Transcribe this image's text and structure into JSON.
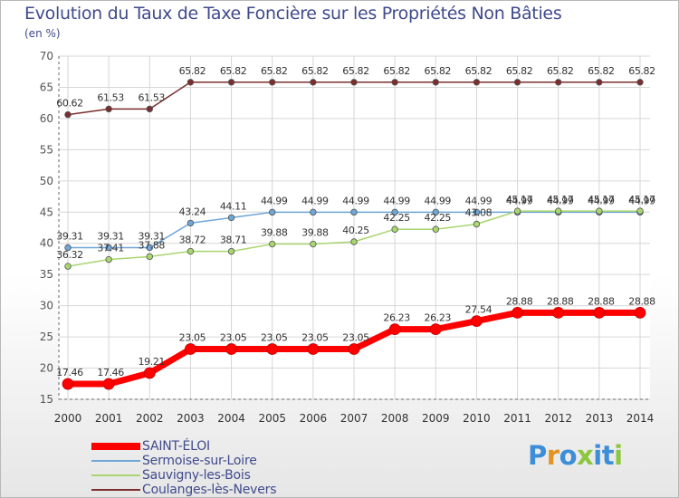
{
  "title": "Evolution du Taux de Taxe Foncière sur les Propriétés Non Bâties",
  "unit_label": "(en %)",
  "brand": {
    "letters": [
      "P",
      "r",
      "o",
      "x",
      "i",
      "t",
      "i"
    ],
    "colors": [
      "#3d8ed8",
      "#e39226",
      "#3d8ed8",
      "#8dc63f",
      "#3d8ed8",
      "#3d8ed8",
      "#8dc63f"
    ]
  },
  "chart_data": {
    "type": "line",
    "title": "Evolution du Taux de Taxe Foncière sur les Propriétés Non Bâties",
    "ylabel": "(en %)",
    "xlabel": "",
    "ylim": [
      15,
      70
    ],
    "yticks": [
      15,
      20,
      25,
      30,
      35,
      40,
      45,
      50,
      55,
      60,
      65,
      70
    ],
    "grid": true,
    "legend_position": "bottom-left",
    "x": [
      2000,
      2001,
      2002,
      2003,
      2004,
      2005,
      2006,
      2007,
      2008,
      2009,
      2010,
      2011,
      2012,
      2013,
      2014
    ],
    "series": [
      {
        "name": "Coulanges-lès-Nevers",
        "color": "#7a2e2e",
        "values": [
          60.62,
          61.53,
          61.53,
          65.82,
          65.82,
          65.82,
          65.82,
          65.82,
          65.82,
          65.82,
          65.82,
          65.82,
          65.82,
          65.82,
          65.82
        ],
        "labels": [
          "60.62",
          "61.53",
          "61.53",
          "65.82",
          "65.82",
          "65.82",
          "65.82",
          "65.82",
          "65.82",
          "65.82",
          "65.82",
          "65.82",
          "65.82",
          "65.82",
          "65.82"
        ]
      },
      {
        "name": "Sermoise-sur-Loire",
        "color": "#6fa6d6",
        "values": [
          39.31,
          39.31,
          39.31,
          43.24,
          44.11,
          44.99,
          44.99,
          44.99,
          44.99,
          44.99,
          44.99,
          44.99,
          44.99,
          44.99,
          44.99
        ],
        "labels": [
          "39.31",
          "39.31",
          "39.31",
          "43.24",
          "44.11",
          "44.99",
          "44.99",
          "44.99",
          "44.99",
          "44.99",
          "44.99",
          "44.99",
          "44.99",
          "44.99",
          "44.99"
        ]
      },
      {
        "name": "Sauvigny-les-Bois",
        "color": "#a9d66f",
        "values": [
          36.32,
          37.41,
          37.88,
          38.72,
          38.71,
          39.88,
          39.88,
          40.25,
          42.25,
          42.25,
          43.08,
          45.17,
          45.17,
          45.17,
          45.17
        ],
        "labels": [
          "36.32",
          "37.41",
          "37.88",
          "38.72",
          "38.71",
          "39.88",
          "39.88",
          "40.25",
          "42.25",
          "42.25",
          "43.08",
          "45.17",
          "45.17",
          "45.17",
          "45.17"
        ]
      },
      {
        "name": "SAINT-ÉLOI",
        "color": "#ff0000",
        "values": [
          17.46,
          17.46,
          19.21,
          23.05,
          23.05,
          23.05,
          23.05,
          23.05,
          26.23,
          26.23,
          27.54,
          28.88,
          28.88,
          28.88,
          28.88
        ],
        "labels": [
          "17.46",
          "17.46",
          "19.21",
          "23.05",
          "23.05",
          "23.05",
          "23.05",
          "23.05",
          "26.23",
          "26.23",
          "27.54",
          "28.88",
          "28.88",
          "28.88",
          "28.88"
        ]
      }
    ]
  },
  "legend": [
    {
      "label": "SAINT-ÉLOI",
      "color": "#ff0000"
    },
    {
      "label": "Sermoise-sur-Loire",
      "color": "#6fa6d6"
    },
    {
      "label": "Sauvigny-les-Bois",
      "color": "#a9d66f"
    },
    {
      "label": "Coulanges-lès-Nevers",
      "color": "#7a2e2e"
    }
  ]
}
